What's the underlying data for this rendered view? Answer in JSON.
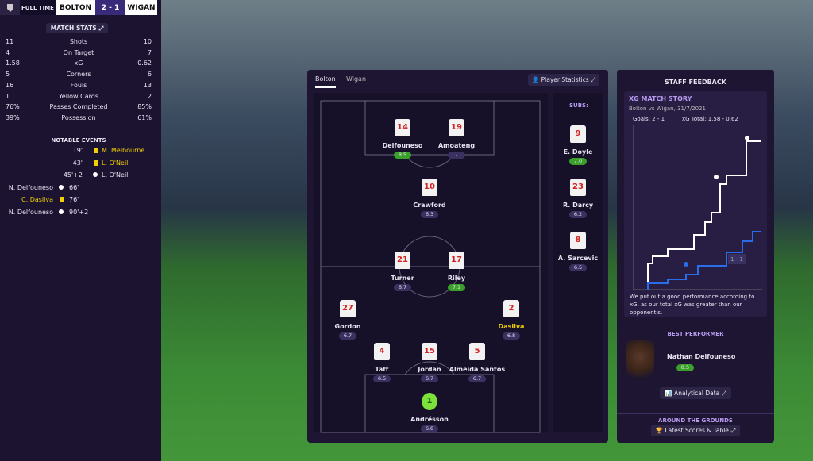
{
  "scoreboard": {
    "status": "FULL TIME",
    "home": "BOLTON",
    "score": "2 - 1",
    "away": "WIGAN"
  },
  "match_stats": {
    "title": "MATCH STATS",
    "rows": [
      [
        "11",
        "Shots",
        "10"
      ],
      [
        "4",
        "On Target",
        "7"
      ],
      [
        "1.58",
        "xG",
        "0.62"
      ],
      [
        "5",
        "Corners",
        "6"
      ],
      [
        "16",
        "Fouls",
        "13"
      ],
      [
        "1",
        "Yellow Cards",
        "2"
      ],
      [
        "76%",
        "Passes Completed",
        "85%"
      ],
      [
        "39%",
        "Possession",
        "61%"
      ]
    ]
  },
  "notable_events": {
    "title": "NOTABLE EVENTS",
    "events": [
      {
        "side": "away",
        "minute": "19'",
        "player": "M. Melbourne",
        "kind": "yellow"
      },
      {
        "side": "away",
        "minute": "43'",
        "player": "L. O'Neill",
        "kind": "yellow"
      },
      {
        "side": "away",
        "minute": "45'+2",
        "player": "L. O'Neill",
        "kind": "goal"
      },
      {
        "side": "home",
        "minute": "66'",
        "player": "N. Delfouneso",
        "kind": "goal"
      },
      {
        "side": "home",
        "minute": "76'",
        "player": "C. Dasilva",
        "kind": "yellow"
      },
      {
        "side": "home",
        "minute": "90'+2",
        "player": "N. Delfouneso",
        "kind": "goal"
      }
    ]
  },
  "lineup": {
    "tabs": [
      "Bolton",
      "Wigan"
    ],
    "button": "Player Statistics",
    "subs_title": "SUBS:",
    "players": [
      {
        "number": "14",
        "name": "Delfouneso",
        "rating": "8.5"
      },
      {
        "number": "19",
        "name": "Amoateng",
        "rating": "-"
      },
      {
        "number": "10",
        "name": "Crawford",
        "rating": "6.3"
      },
      {
        "number": "21",
        "name": "Turner",
        "rating": "6.7"
      },
      {
        "number": "17",
        "name": "Riley",
        "rating": "7.1"
      },
      {
        "number": "27",
        "name": "Gordon",
        "rating": "6.7"
      },
      {
        "number": "2",
        "name": "Dasilva",
        "rating": "6.8",
        "booked": true
      },
      {
        "number": "4",
        "name": "Taft",
        "rating": "6.5"
      },
      {
        "number": "15",
        "name": "Jordan",
        "rating": "6.7"
      },
      {
        "number": "5",
        "name": "Almeida Santos",
        "rating": "6.7"
      },
      {
        "number": "1",
        "name": "Andrésson",
        "rating": "6.8",
        "keeper": true
      }
    ],
    "subs": [
      {
        "number": "9",
        "name": "E. Doyle",
        "rating": "7.0"
      },
      {
        "number": "23",
        "name": "R. Darcy",
        "rating": "6.2"
      },
      {
        "number": "8",
        "name": "A. Sarcevic",
        "rating": "6.5"
      }
    ]
  },
  "feedback": {
    "title": "STAFF FEEDBACK",
    "story_title": "XG MATCH STORY",
    "match": "Bolton vs Wigan, 31/7/2021",
    "goals": "Goals: 2 - 1",
    "xg_total": "xG Total: 1.58 - 0.62",
    "chart_label": "1 - 1",
    "summary": "We put out a good performance according to xG, as our total xG was greater than our opponent's.",
    "best_title": "BEST PERFORMER",
    "best_name": "Nathan Delfouneso",
    "best_rating": "8.5",
    "analytics_button": "Analytical Data",
    "grounds_title": "AROUND THE GROUNDS",
    "grounds_button": "Latest Scores & Table"
  }
}
